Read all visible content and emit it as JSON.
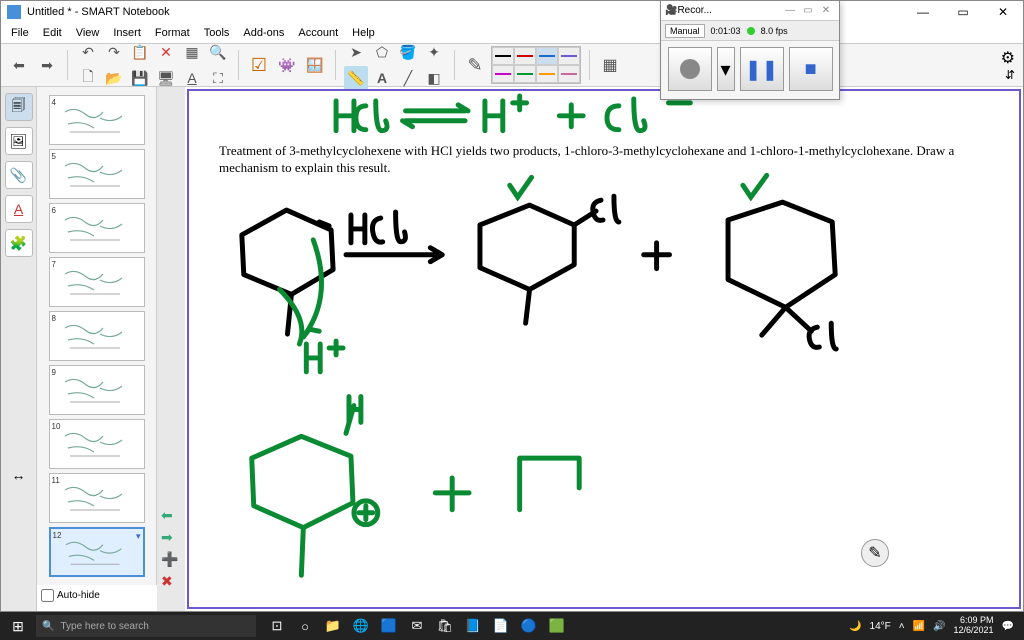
{
  "window": {
    "title": "Untitled * - SMART Notebook",
    "menus": [
      "File",
      "Edit",
      "View",
      "Insert",
      "Format",
      "Tools",
      "Add-ons",
      "Account",
      "Help"
    ]
  },
  "recorder": {
    "title": "Recor...",
    "mode": "Manual",
    "time": "0:01:03",
    "fps": "8.0 fps"
  },
  "line_colors_top": [
    "#000000",
    "#cc0000",
    "#1a6bcc",
    "#cc00cc"
  ],
  "line_colors_bot": [
    "#cc00cc",
    "#009933",
    "#ff9900",
    "#cc6699"
  ],
  "thumbs": [
    {
      "n": "4"
    },
    {
      "n": "5"
    },
    {
      "n": "6"
    },
    {
      "n": "7"
    },
    {
      "n": "8"
    },
    {
      "n": "9"
    },
    {
      "n": "10"
    },
    {
      "n": "11"
    },
    {
      "n": "12",
      "selected": true
    }
  ],
  "autohide_label": "Auto-hide",
  "problem": {
    "text": "Treatment of 3-methylcyclohexene with HCl yields two products, 1-chloro-3-methylcyclohexane and 1-chloro-1-methylcyclohexane. Draw a mechanism to explain this result."
  },
  "handwriting": {
    "green": "#0a8a32",
    "black": "#000000",
    "stroke_green": 5,
    "stroke_black": 5
  },
  "taskbar": {
    "search_placeholder": "Type here to search",
    "temp": "14°F",
    "time": "6:09 PM",
    "date": "12/6/2021"
  }
}
